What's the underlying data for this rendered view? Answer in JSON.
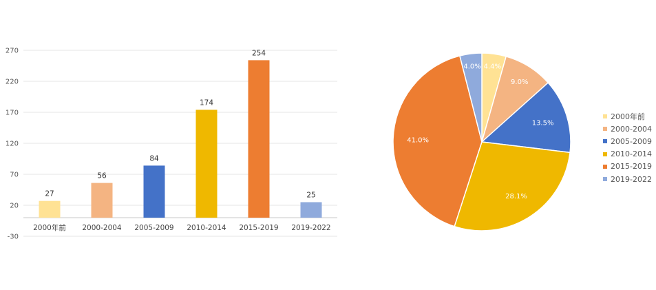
{
  "chart_data": [
    {
      "type": "bar",
      "categories": [
        "2000年前",
        "2000-2004",
        "2005-2009",
        "2010-2014",
        "2015-2019",
        "2019-2022"
      ],
      "values": [
        27,
        56,
        84,
        174,
        254,
        25
      ],
      "colors": [
        "#FFE294",
        "#F4B482",
        "#4472C8",
        "#EFB800",
        "#ED7D31",
        "#8FAADC"
      ],
      "ylim": [
        -30,
        270
      ],
      "yticks": [
        -30,
        20,
        70,
        120,
        170,
        220,
        270
      ],
      "grid": true,
      "title": "",
      "xlabel": "",
      "ylabel": ""
    },
    {
      "type": "pie",
      "labels": [
        "2000年前",
        "2000-2004",
        "2005-2009",
        "2010-2014",
        "2015-2019",
        "2019-2022"
      ],
      "values": [
        4.4,
        9.0,
        13.5,
        28.1,
        41.0,
        4.0
      ],
      "value_labels": [
        "4.4%",
        "9.0%",
        "13.5%",
        "28.1%",
        "41.0%",
        "4.0%"
      ],
      "colors": [
        "#FFE294",
        "#F4B482",
        "#4472C8",
        "#EFB800",
        "#ED7D31",
        "#8FAADC"
      ],
      "legend_position": "right"
    }
  ]
}
